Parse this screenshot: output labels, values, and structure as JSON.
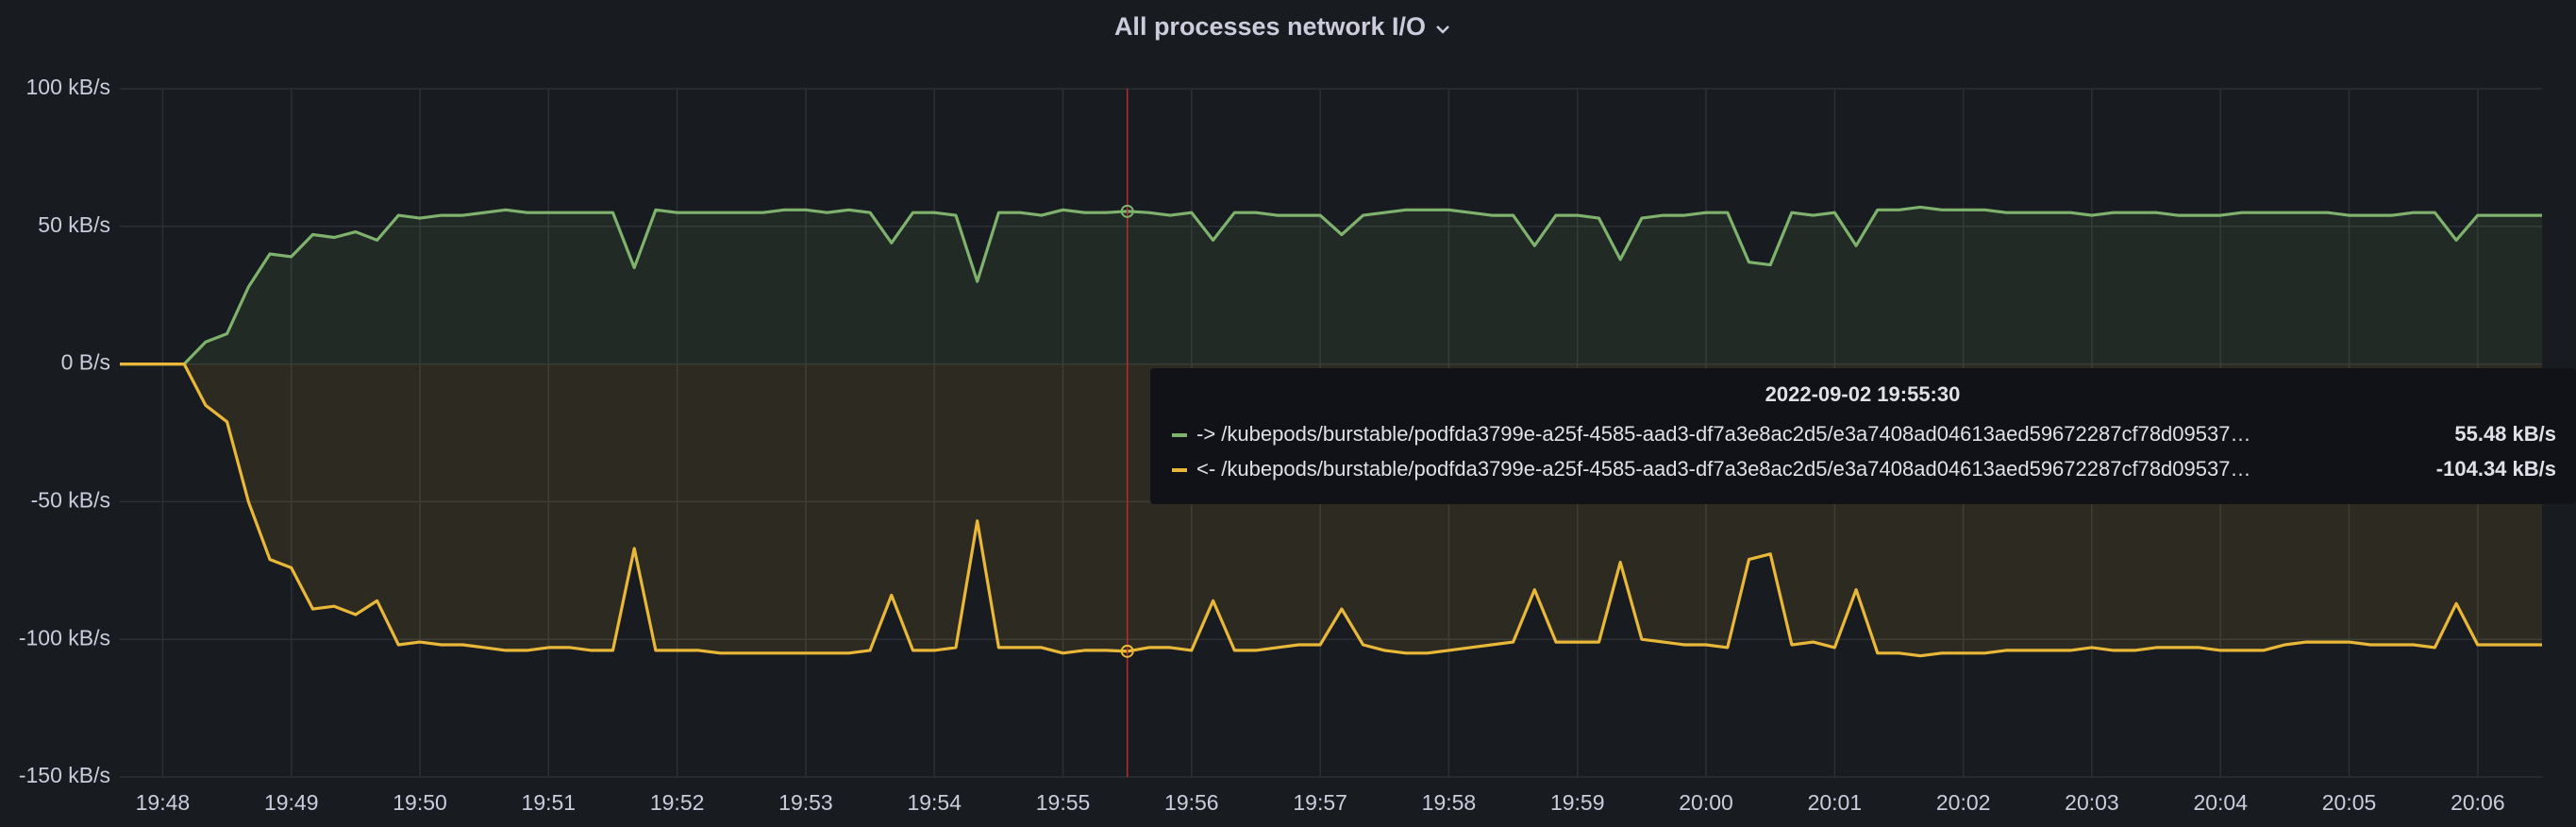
{
  "chart_data": {
    "type": "line",
    "title": "All processes network I/O",
    "x": [
      "19:47:40",
      "19:47:50",
      "19:48:00",
      "19:48:10",
      "19:48:20",
      "19:48:30",
      "19:48:40",
      "19:48:50",
      "19:49:00",
      "19:49:10",
      "19:49:20",
      "19:49:30",
      "19:49:40",
      "19:49:50",
      "19:50:00",
      "19:50:10",
      "19:50:20",
      "19:50:30",
      "19:50:40",
      "19:50:50",
      "19:51:00",
      "19:51:10",
      "19:51:20",
      "19:51:30",
      "19:51:40",
      "19:51:50",
      "19:52:00",
      "19:52:10",
      "19:52:20",
      "19:52:30",
      "19:52:40",
      "19:52:50",
      "19:53:00",
      "19:53:10",
      "19:53:20",
      "19:53:30",
      "19:53:40",
      "19:53:50",
      "19:54:00",
      "19:54:10",
      "19:54:20",
      "19:54:30",
      "19:54:40",
      "19:54:50",
      "19:55:00",
      "19:55:10",
      "19:55:20",
      "19:55:30",
      "19:55:40",
      "19:55:50",
      "19:56:00",
      "19:56:10",
      "19:56:20",
      "19:56:30",
      "19:56:40",
      "19:56:50",
      "19:57:00",
      "19:57:10",
      "19:57:20",
      "19:57:30",
      "19:57:40",
      "19:57:50",
      "19:58:00",
      "19:58:10",
      "19:58:20",
      "19:58:30",
      "19:58:40",
      "19:58:50",
      "19:59:00",
      "19:59:10",
      "19:59:20",
      "19:59:30",
      "19:59:40",
      "19:59:50",
      "20:00:00",
      "20:00:10",
      "20:00:20",
      "20:00:30",
      "20:00:40",
      "20:00:50",
      "20:01:00",
      "20:01:10",
      "20:01:20",
      "20:01:30",
      "20:01:40",
      "20:01:50",
      "20:02:00",
      "20:02:10",
      "20:02:20",
      "20:02:30",
      "20:02:40",
      "20:02:50",
      "20:03:00",
      "20:03:10",
      "20:03:20",
      "20:03:30",
      "20:03:40",
      "20:03:50",
      "20:04:00",
      "20:04:10",
      "20:04:20",
      "20:04:30",
      "20:04:40",
      "20:04:50",
      "20:05:00",
      "20:05:10",
      "20:05:20",
      "20:05:30",
      "20:05:40",
      "20:05:50",
      "20:06:00",
      "20:06:10",
      "20:06:20",
      "20:06:30"
    ],
    "series": [
      {
        "name": "-> /kubepods/burstable/podfda3799e-a25f-4585-aad3-df7a3e8ac2d5/e3a7408ad04613aed59672287cf78d09537…",
        "color": "#7eb26d",
        "values": [
          0,
          0,
          0,
          0,
          8,
          11,
          28,
          40,
          39,
          47,
          46,
          48,
          45,
          54,
          53,
          54,
          54,
          55,
          56,
          55,
          55,
          55,
          55,
          55,
          35,
          56,
          55,
          55,
          55,
          55,
          55,
          56,
          56,
          55,
          56,
          55,
          44,
          55,
          55,
          54,
          30,
          55,
          55,
          54,
          56,
          55,
          55,
          55.48,
          55,
          54,
          55,
          45,
          55,
          55,
          54,
          54,
          54,
          47,
          54,
          55,
          56,
          56,
          56,
          55,
          54,
          54,
          43,
          54,
          54,
          53,
          38,
          53,
          54,
          54,
          55,
          55,
          37,
          36,
          55,
          54,
          55,
          43,
          56,
          56,
          57,
          56,
          56,
          56,
          55,
          55,
          55,
          55,
          54,
          55,
          55,
          55,
          54,
          54,
          54,
          55,
          55,
          55,
          55,
          55,
          54,
          54,
          54,
          55,
          55,
          45,
          54,
          54,
          54,
          54
        ]
      },
      {
        "name": "<- /kubepods/burstable/podfda3799e-a25f-4585-aad3-df7a3e8ac2d5/e3a7408ad04613aed59672287cf78d09537…",
        "color": "#eab839",
        "values": [
          0,
          0,
          0,
          0,
          -15,
          -21,
          -50,
          -71,
          -74,
          -89,
          -88,
          -91,
          -86,
          -102,
          -101,
          -102,
          -102,
          -103,
          -104,
          -104,
          -103,
          -103,
          -104,
          -104,
          -67,
          -104,
          -104,
          -104,
          -105,
          -105,
          -105,
          -105,
          -105,
          -105,
          -105,
          -104,
          -84,
          -104,
          -104,
          -103,
          -57,
          -103,
          -103,
          -103,
          -105,
          -104,
          -104,
          -104.34,
          -103,
          -103,
          -104,
          -86,
          -104,
          -104,
          -103,
          -102,
          -102,
          -89,
          -102,
          -104,
          -105,
          -105,
          -104,
          -103,
          -102,
          -101,
          -82,
          -101,
          -101,
          -101,
          -72,
          -100,
          -101,
          -102,
          -102,
          -103,
          -71,
          -69,
          -102,
          -101,
          -103,
          -82,
          -105,
          -105,
          -106,
          -105,
          -105,
          -105,
          -104,
          -104,
          -104,
          -104,
          -103,
          -104,
          -104,
          -103,
          -103,
          -103,
          -104,
          -104,
          -104,
          -102,
          -101,
          -101,
          -101,
          -102,
          -102,
          -102,
          -103,
          -87,
          -102,
          -102,
          -102,
          -102
        ]
      }
    ],
    "xlim": [
      "19:47:40",
      "20:06:30"
    ],
    "xticks": [
      "19:48",
      "19:49",
      "19:50",
      "19:51",
      "19:52",
      "19:53",
      "19:54",
      "19:55",
      "19:56",
      "19:57",
      "19:58",
      "19:59",
      "20:00",
      "20:01",
      "20:02",
      "20:03",
      "20:04",
      "20:05",
      "20:06"
    ],
    "ylim": [
      -150,
      100
    ],
    "yticks": [
      {
        "value": -150,
        "label": "-150 kB/s"
      },
      {
        "value": -100,
        "label": "-100 kB/s"
      },
      {
        "value": -50,
        "label": "-50 kB/s"
      },
      {
        "value": 0,
        "label": "0 B/s"
      },
      {
        "value": 50,
        "label": "50 kB/s"
      },
      {
        "value": 100,
        "label": "100 kB/s"
      }
    ],
    "grid": true,
    "fill_area": true,
    "tooltip": {
      "title": "2022-09-02 19:55:30",
      "x": "19:55:30",
      "value_labels": [
        "55.48 kB/s",
        "-104.34 kB/s"
      ]
    }
  }
}
